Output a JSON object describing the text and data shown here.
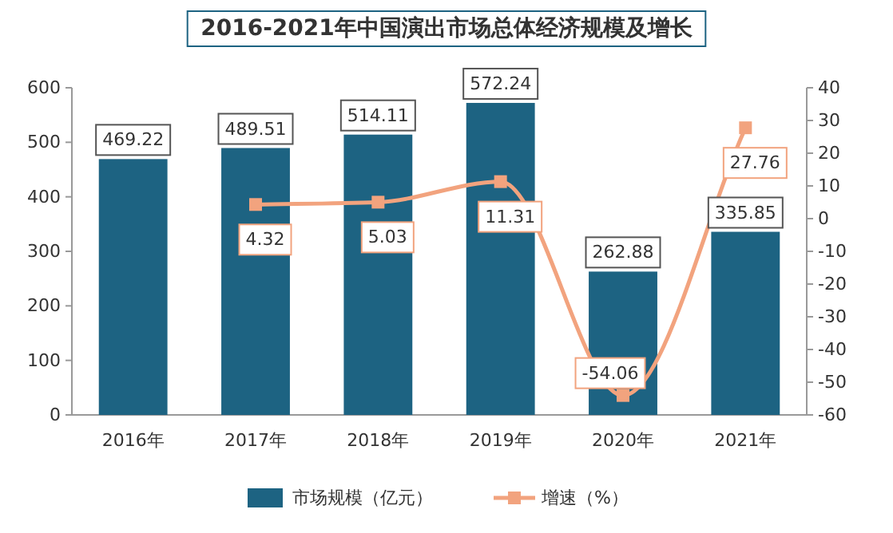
{
  "chart_data": {
    "type": "bar",
    "title": "2016-2021年中国演出市场总体经济规模及增长",
    "categories": [
      "2016年",
      "2017年",
      "2018年",
      "2019年",
      "2020年",
      "2021年"
    ],
    "series": [
      {
        "name": "市场规模（亿元）",
        "color": "#1d6382",
        "values": [
          469.22,
          489.51,
          514.11,
          572.24,
          262.88,
          335.85
        ]
      },
      {
        "name": "增速（%）",
        "type": "line",
        "axis": "y2",
        "color": "#f2a37e",
        "values": [
          null,
          4.32,
          5.03,
          11.31,
          -54.06,
          27.76
        ]
      }
    ],
    "ylim": [
      0,
      600
    ],
    "yticks": [
      0,
      100,
      200,
      300,
      400,
      500,
      600
    ],
    "y2lim": [
      -60,
      40
    ],
    "y2ticks": [
      -60,
      -50,
      -40,
      -30,
      -20,
      -10,
      0,
      10,
      20,
      30,
      40
    ],
    "marker": "square",
    "data_labels": true,
    "legend": "bottom"
  }
}
